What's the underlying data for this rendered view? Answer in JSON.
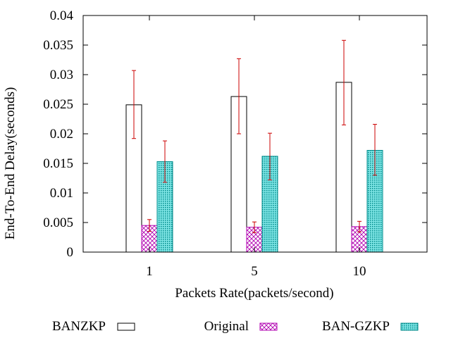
{
  "chart_data": {
    "type": "bar",
    "title": "",
    "xlabel": "Packets Rate(packets/second)",
    "ylabel": "End-To-End Delay(seconds)",
    "ylim": [
      0,
      0.04
    ],
    "yticks": [
      "0",
      "0.005",
      "0.01",
      "0.015",
      "0.02",
      "0.025",
      "0.03",
      "0.035",
      "0.04"
    ],
    "categories": [
      "1",
      "5",
      "10"
    ],
    "legend_position": "bottom",
    "series": [
      {
        "name": "BANZKP",
        "values": [
          0.0249,
          0.0263,
          0.0287
        ],
        "err_low": [
          0.0192,
          0.02,
          0.0215
        ],
        "err_high": [
          0.0307,
          0.0327,
          0.0358
        ],
        "fill": "white",
        "color": "#000000"
      },
      {
        "name": "Original",
        "values": [
          0.0045,
          0.0042,
          0.0043
        ],
        "err_low": [
          0.0035,
          0.0033,
          0.0034
        ],
        "err_high": [
          0.0055,
          0.0051,
          0.0052
        ],
        "fill": "crosshatch",
        "color": "#b000b0"
      },
      {
        "name": "BAN-GZKP",
        "values": [
          0.0153,
          0.0162,
          0.0172
        ],
        "err_low": [
          0.0118,
          0.0122,
          0.013
        ],
        "err_high": [
          0.0188,
          0.0201,
          0.0216
        ],
        "fill": "dots",
        "color": "#008b8b"
      }
    ],
    "error_bar_color": "#cc0000"
  }
}
